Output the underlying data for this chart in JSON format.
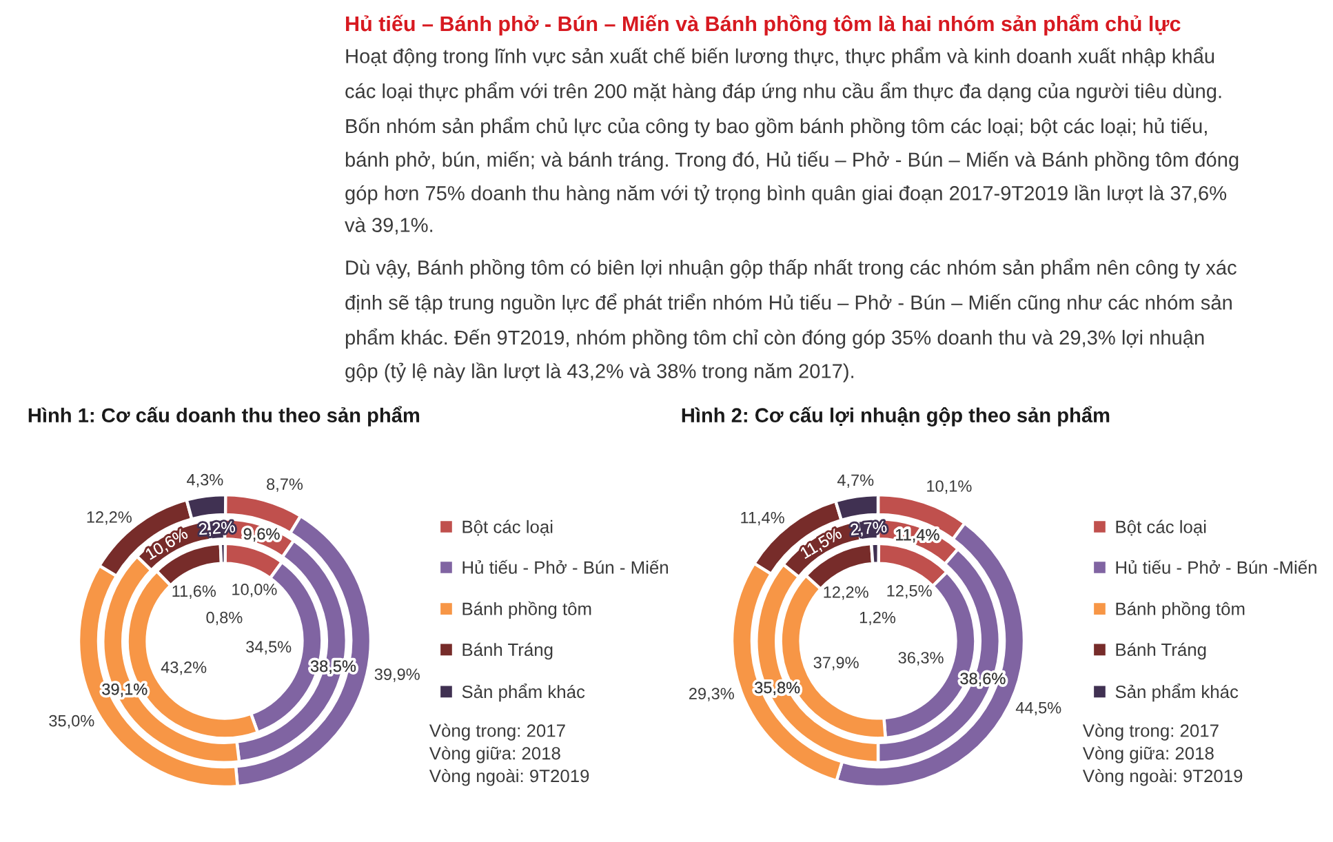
{
  "chart_data": [
    {
      "type": "other",
      "title": "Hủ tiếu – Bánh phở - Bún – Miến và Bánh phồng tôm là hai nhóm sản phẩm chủ lực",
      "annotations": [
        "Hoạt động trong lĩnh vực sản xuất chế biến lương thực, thực phẩm và kinh doanh xuất nhập khẩu các loại thực phẩm với trên 200 mặt hàng đáp ứng nhu cầu ẩm thực đa dạng của người tiêu dùng. Bốn nhóm sản phẩm chủ lực của công ty bao gồm bánh phồng tôm các loại; bột các loại; hủ tiếu, bánh phở, bún, miến; và bánh tráng. Trong đó, Hủ tiếu – Phở - Bún – Miến và Bánh phồng tôm đóng góp hơn 75% doanh thu hàng năm với tỷ trọng bình quân giai đoạn 2017-9T2019 lần lượt là 37,6% và 39,1%.",
        "Dù vậy, Bánh phồng tôm có biên lợi nhuận gộp thấp nhất trong các nhóm sản phẩm nên công ty xác định sẽ tập trung nguồn lực để phát triển nhóm Hủ tiếu – Phở - Bún – Miến cũng như các nhóm sản phẩm khác. Đến 9T2019, nhóm phồng tôm chỉ còn đóng góp 35% doanh thu và 29,3% lợi nhuận gộp (tỷ lệ này lần lượt là 43,2% và 38% trong năm 2017)."
      ]
    },
    {
      "type": "donut",
      "title": "Hình 1: Cơ cấu doanh thu theo sản phẩm",
      "categories": [
        "Bột các loại",
        "Hủ tiếu - Phở - Bún - Miến",
        "Bánh phồng tôm",
        "Bánh Tráng",
        "Sản phẩm khác"
      ],
      "colors": [
        "#c0504d",
        "#8064a2",
        "#f79646",
        "#772c2a",
        "#403152"
      ],
      "series": [
        {
          "values": [
            10.0,
            34.5,
            43.2,
            11.6,
            0.8
          ],
          "value_labels": [
            "10,0%",
            "34,5%",
            "43,2%",
            "11,6%",
            "0,8%"
          ]
        },
        {
          "values": [
            9.6,
            38.5,
            39.1,
            10.6,
            2.2
          ],
          "value_labels": [
            "9,6%",
            "38,5%",
            "39,1%",
            "10,6%",
            "2,2%"
          ]
        },
        {
          "values": [
            8.7,
            39.9,
            35.0,
            12.2,
            4.3
          ],
          "value_labels": [
            "8,7%",
            "39,9%",
            "35,0%",
            "12,2%",
            "4,3%"
          ]
        }
      ],
      "legend": "right",
      "annotations": [
        "Vòng trong: 2017",
        "Vòng giữa: 2018",
        "Vòng ngoài: 9T2019"
      ]
    },
    {
      "type": "donut",
      "title": "Hình 2: Cơ cấu lợi nhuận gộp theo sản phẩm",
      "categories": [
        "Bột các loại",
        "Hủ tiếu - Phở - Bún -Miến",
        "Bánh phồng tôm",
        "Bánh Tráng",
        "Sản phẩm khác"
      ],
      "colors": [
        "#c0504d",
        "#8064a2",
        "#f79646",
        "#772c2a",
        "#403152"
      ],
      "series": [
        {
          "values": [
            12.5,
            36.3,
            37.9,
            12.2,
            1.2
          ],
          "value_labels": [
            "12,5%",
            "36,3%",
            "37,9%",
            "12,2%",
            "1,2%"
          ]
        },
        {
          "values": [
            11.4,
            38.6,
            35.8,
            11.5,
            2.7
          ],
          "value_labels": [
            "11,4%",
            "38,6%",
            "35,8%",
            "11,5%",
            "2,7%"
          ]
        },
        {
          "values": [
            10.1,
            44.5,
            29.3,
            11.4,
            4.7
          ],
          "value_labels": [
            "10,1%",
            "44,5%",
            "29,3%",
            "11,4%",
            "4,7%"
          ]
        }
      ],
      "legend": "right",
      "annotations": [
        "Vòng trong: 2017",
        "Vòng giữa: 2018",
        "Vòng ngoài: 9T2019"
      ]
    }
  ]
}
